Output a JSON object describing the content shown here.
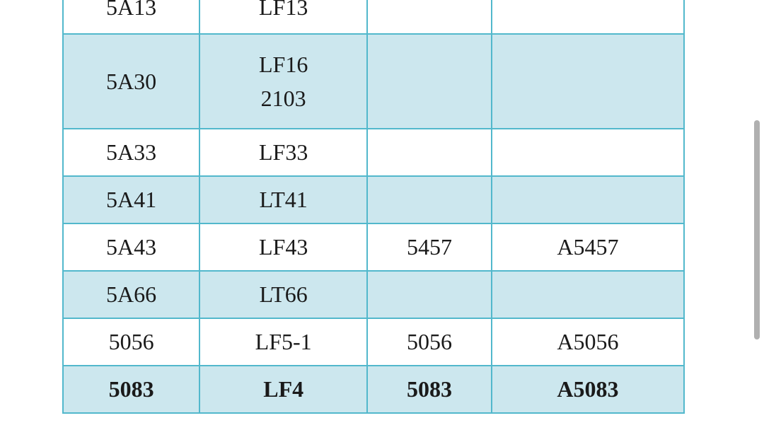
{
  "table": {
    "type": "table",
    "border_color": "#52b8cc",
    "shaded_bg": "#cce7ee",
    "white_bg": "#ffffff",
    "font_family": "Times New Roman",
    "font_size": 32,
    "text_color": "#1a1a1a",
    "column_widths_pct": [
      22,
      27,
      20,
      31
    ],
    "rows": [
      {
        "cells": [
          "5A13",
          "LF13",
          "",
          ""
        ],
        "shaded": false,
        "bold": false,
        "partial_top": true
      },
      {
        "cells": [
          "5A30",
          "LF16\n2103",
          "",
          ""
        ],
        "shaded": true,
        "bold": false
      },
      {
        "cells": [
          "5A33",
          "LF33",
          "",
          ""
        ],
        "shaded": false,
        "bold": false
      },
      {
        "cells": [
          "5A41",
          "LT41",
          "",
          ""
        ],
        "shaded": true,
        "bold": false
      },
      {
        "cells": [
          "5A43",
          "LF43",
          "5457",
          "A5457"
        ],
        "shaded": false,
        "bold": false
      },
      {
        "cells": [
          "5A66",
          "LT66",
          "",
          ""
        ],
        "shaded": true,
        "bold": false
      },
      {
        "cells": [
          "5056",
          "LF5-1",
          "5056",
          "A5056"
        ],
        "shaded": false,
        "bold": false
      },
      {
        "cells": [
          "5083",
          "LF4",
          "5083",
          "A5083"
        ],
        "shaded": true,
        "bold": true
      }
    ]
  },
  "scrollbar": {
    "color": "#b0b0b0",
    "visible": true
  }
}
